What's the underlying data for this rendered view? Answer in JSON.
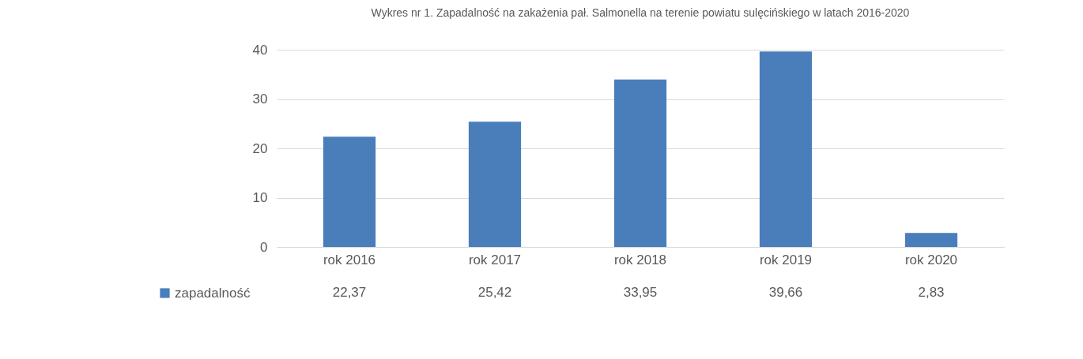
{
  "chart_data": {
    "type": "bar",
    "title": "Wykres nr 1. Zapadalność na zakażenia pał. Salmonella na terenie powiatu sulęcińskiego w latach 2016-2020",
    "categories": [
      "rok 2016",
      "rok 2017",
      "rok 2018",
      "rok 2019",
      "rok 2020"
    ],
    "series": [
      {
        "name": "zapadalność",
        "color": "#4a7ebb",
        "values": [
          22.37,
          25.42,
          33.95,
          39.66,
          2.83
        ],
        "value_labels": [
          "22,37",
          "25,42",
          "33,95",
          "39,66",
          "2,83"
        ]
      }
    ],
    "ylim": [
      0,
      40
    ],
    "yticks": [
      0,
      10,
      20,
      30,
      40
    ],
    "grid": "y",
    "legend": "bottom left"
  }
}
